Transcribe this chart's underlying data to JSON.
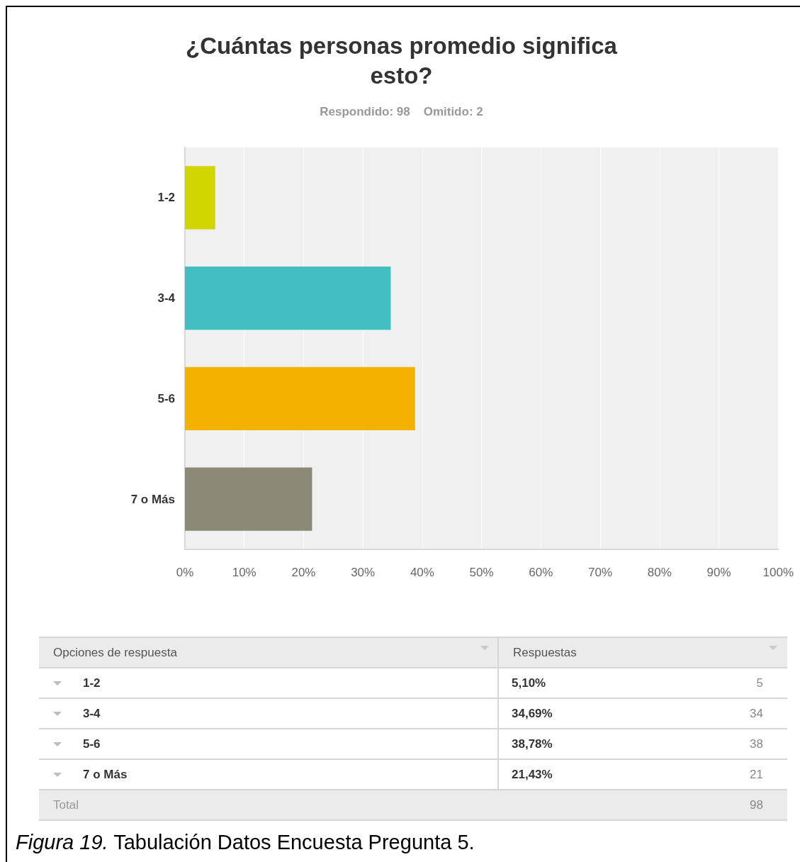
{
  "chart_data": {
    "type": "bar",
    "orientation": "horizontal",
    "title": "¿Cuántas personas promedio significa\nesto?",
    "subtitle": "Respondido: 98    Omitido: 2",
    "categories": [
      "1-2",
      "3-4",
      "5-6",
      "7 o Más"
    ],
    "values": [
      5.1,
      34.69,
      38.78,
      21.43
    ],
    "colors": [
      "#d1d600",
      "#43bec2",
      "#f5b100",
      "#8a8a77"
    ],
    "xlim": [
      0,
      100
    ],
    "xticks": [
      {
        "value": 0,
        "label": "0%"
      },
      {
        "value": 10,
        "label": "10%"
      },
      {
        "value": 20,
        "label": "20%"
      },
      {
        "value": 30,
        "label": "30%"
      },
      {
        "value": 40,
        "label": "40%"
      },
      {
        "value": 50,
        "label": "50%"
      },
      {
        "value": 60,
        "label": "60%"
      },
      {
        "value": 70,
        "label": "70%"
      },
      {
        "value": 80,
        "label": "80%"
      },
      {
        "value": 90,
        "label": "90%"
      },
      {
        "value": 100,
        "label": "100%"
      }
    ],
    "grid": "x",
    "annotations": [
      "Opciones de respuesta",
      "Respuestas",
      "5,10%",
      "5",
      "34,69%",
      "34",
      "38,78%",
      "38",
      "21,43%",
      "21",
      "Total",
      "98",
      "Figura 19.",
      "Tabulación Datos Encuesta Pregunta 5."
    ]
  }
}
